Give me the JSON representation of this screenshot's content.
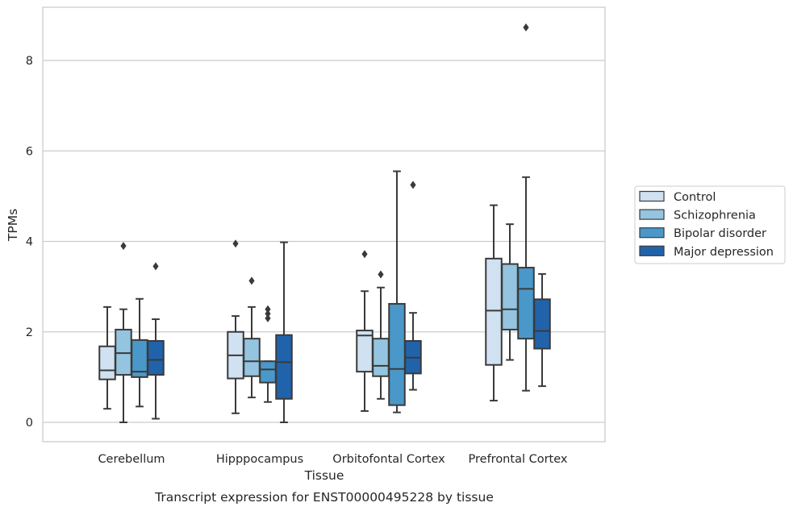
{
  "chart_data": {
    "type": "box",
    "title": "",
    "caption": "Transcript expression for ENST00000495228 by tissue",
    "xlabel": "Tissue",
    "ylabel": "TPMs",
    "ylim": [
      -0.4,
      9.3
    ],
    "yticks": [
      0,
      2,
      4,
      6,
      8
    ],
    "grid": "horizontal",
    "legend_position": "right",
    "categories": [
      "Cerebellum",
      "Hipppocampus",
      "Orbitofontal Cortex",
      "Prefrontal Cortex"
    ],
    "series": [
      {
        "name": "Control",
        "color": "#d0e1f2",
        "boxes": [
          {
            "whisker_low": 0.3,
            "q1": 0.95,
            "median": 1.15,
            "q3": 1.68,
            "whisker_high": 2.55,
            "outliers": []
          },
          {
            "whisker_low": 0.2,
            "q1": 0.97,
            "median": 1.48,
            "q3": 2.0,
            "whisker_high": 2.35,
            "outliers": [
              3.95
            ]
          },
          {
            "whisker_low": 0.25,
            "q1": 1.12,
            "median": 1.92,
            "q3": 2.03,
            "whisker_high": 2.9,
            "outliers": [
              3.72
            ]
          },
          {
            "whisker_low": 0.48,
            "q1": 1.27,
            "median": 2.47,
            "q3": 3.62,
            "whisker_high": 4.8,
            "outliers": []
          }
        ]
      },
      {
        "name": "Schizophrenia",
        "color": "#94c4df",
        "boxes": [
          {
            "whisker_low": 0.0,
            "q1": 1.05,
            "median": 1.53,
            "q3": 2.05,
            "whisker_high": 2.5,
            "outliers": [
              3.9
            ]
          },
          {
            "whisker_low": 0.55,
            "q1": 1.02,
            "median": 1.35,
            "q3": 1.85,
            "whisker_high": 2.55,
            "outliers": [
              3.13
            ]
          },
          {
            "whisker_low": 0.52,
            "q1": 1.02,
            "median": 1.25,
            "q3": 1.85,
            "whisker_high": 2.98,
            "outliers": [
              3.27
            ]
          },
          {
            "whisker_low": 1.38,
            "q1": 2.05,
            "median": 2.5,
            "q3": 3.5,
            "whisker_high": 4.38,
            "outliers": []
          }
        ]
      },
      {
        "name": "Bipolar disorder",
        "color": "#4a98c9",
        "boxes": [
          {
            "whisker_low": 0.35,
            "q1": 1.0,
            "median": 1.12,
            "q3": 1.82,
            "whisker_high": 2.73,
            "outliers": []
          },
          {
            "whisker_low": 0.45,
            "q1": 0.88,
            "median": 1.17,
            "q3": 1.35,
            "whisker_high": 1.35,
            "outliers": [
              2.5,
              2.4,
              2.3
            ]
          },
          {
            "whisker_low": 0.22,
            "q1": 0.38,
            "median": 1.18,
            "q3": 2.62,
            "whisker_high": 5.55,
            "outliers": []
          },
          {
            "whisker_low": 0.7,
            "q1": 1.85,
            "median": 2.95,
            "q3": 3.42,
            "whisker_high": 5.42,
            "outliers": [
              8.73
            ]
          }
        ]
      },
      {
        "name": "Major depression",
        "color": "#2163aa",
        "boxes": [
          {
            "whisker_low": 0.08,
            "q1": 1.05,
            "median": 1.38,
            "q3": 1.8,
            "whisker_high": 2.28,
            "outliers": [
              3.45
            ]
          },
          {
            "whisker_low": 0.0,
            "q1": 0.52,
            "median": 1.33,
            "q3": 1.93,
            "whisker_high": 3.98,
            "outliers": []
          },
          {
            "whisker_low": 0.72,
            "q1": 1.08,
            "median": 1.43,
            "q3": 1.8,
            "whisker_high": 2.42,
            "outliers": [
              5.25
            ]
          },
          {
            "whisker_low": 0.8,
            "q1": 1.63,
            "median": 2.02,
            "q3": 2.72,
            "whisker_high": 3.28,
            "outliers": []
          }
        ]
      }
    ]
  }
}
